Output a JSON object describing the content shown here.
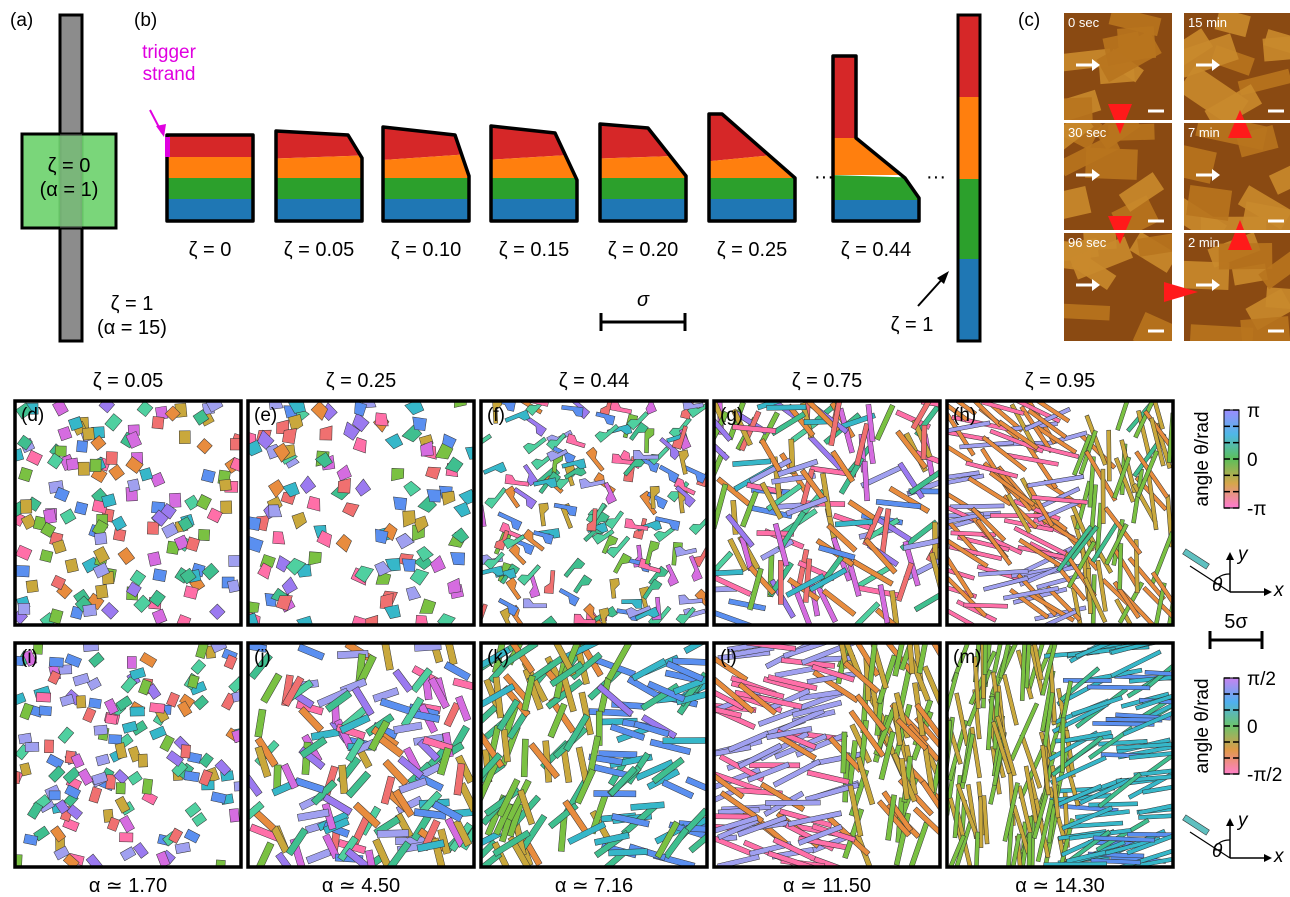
{
  "panels": {
    "a": {
      "label": "(a)",
      "zeta0_line1": "ζ = 0",
      "zeta0_line2": "(α = 1)",
      "zeta1_line1": "ζ = 1",
      "zeta1_line2": "(α = 15)"
    },
    "b": {
      "label": "(b)",
      "trigger_line1": "trigger",
      "trigger_line2": "strand",
      "shapes": [
        "ζ = 0",
        "ζ = 0.05",
        "ζ = 0.10",
        "ζ = 0.15",
        "ζ = 0.20",
        "ζ = 0.25",
        "ζ = 0.44"
      ],
      "ellipsis": "···",
      "zeta1": "ζ = 1",
      "sigma": "σ",
      "stripe_colors": [
        "#d62728",
        "#ff7f0e",
        "#2ca02c",
        "#1f77b4"
      ]
    },
    "c": {
      "label": "(c)",
      "times": [
        "0 sec",
        "15 min",
        "30 sec",
        "7 min",
        "96 sec",
        "2 min"
      ]
    },
    "top_row": {
      "titles": [
        "ζ = 0.05",
        "ζ = 0.25",
        "ζ = 0.44",
        "ζ = 0.75",
        "ζ = 0.95"
      ],
      "labels": [
        "(d)",
        "(e)",
        "(f)",
        "(g)",
        "(h)"
      ]
    },
    "bottom_row": {
      "titles": [
        "α ≃ 1.70",
        "α ≃ 4.50",
        "α ≃ 7.16",
        "α ≃ 11.50",
        "α ≃ 14.30"
      ],
      "labels": [
        "(i)",
        "(j)",
        "(k)",
        "(l)",
        "(m)"
      ]
    },
    "colorbar_top": {
      "axis_label": "angle θ/rad",
      "ticks": [
        "π",
        "0",
        "-π"
      ]
    },
    "colorbar_bottom": {
      "axis_label": "angle θ/rad",
      "ticks": [
        "π/2",
        "0",
        "-π/2"
      ]
    },
    "axes_diagram": {
      "x": "x",
      "y": "y",
      "theta": "θ"
    },
    "scale_bar": "5σ"
  }
}
